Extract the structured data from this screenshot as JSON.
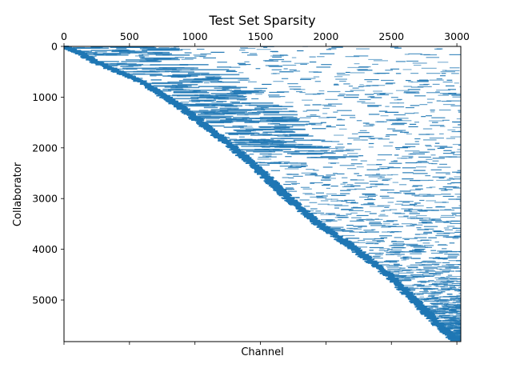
{
  "chart_data": {
    "type": "sparsity",
    "title": "Test Set Sparsity",
    "xlabel": "Channel",
    "ylabel": "Collaborator",
    "xlim": [
      0,
      3030
    ],
    "ylim": [
      5820,
      0
    ],
    "x_ticks": [
      0,
      500,
      1000,
      1500,
      2000,
      2500,
      3000
    ],
    "x_tick_labels": [
      "0",
      "500",
      "1000",
      "1500",
      "2000",
      "2500",
      "3000"
    ],
    "x_tick_position": "top",
    "y_ticks": [
      0,
      1000,
      2000,
      3000,
      4000,
      5000
    ],
    "y_tick_labels": [
      "0",
      "1000",
      "2000",
      "3000",
      "4000",
      "5000"
    ],
    "y_axis_inverted": true,
    "grid": false,
    "marker_color": "#1f77b4",
    "diagonal_boundary": [
      {
        "collaborator": 0,
        "channel": 0
      },
      {
        "collaborator": 120,
        "channel": 120
      },
      {
        "collaborator": 300,
        "channel": 240
      },
      {
        "collaborator": 700,
        "channel": 600
      },
      {
        "collaborator": 1200,
        "channel": 900
      },
      {
        "collaborator": 2000,
        "channel": 1300
      },
      {
        "collaborator": 2400,
        "channel": 1480
      },
      {
        "collaborator": 3000,
        "channel": 1720
      },
      {
        "collaborator": 3500,
        "channel": 1950
      },
      {
        "collaborator": 4000,
        "channel": 2230
      },
      {
        "collaborator": 4500,
        "channel": 2480
      },
      {
        "collaborator": 5000,
        "channel": 2680
      },
      {
        "collaborator": 5500,
        "channel": 2870
      },
      {
        "collaborator": 5800,
        "channel": 3000
      }
    ]
  }
}
